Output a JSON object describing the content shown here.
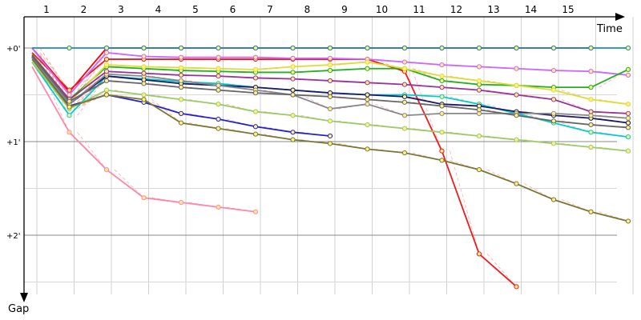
{
  "chart_data": {
    "type": "line",
    "x_axis_title": "Time",
    "y_axis_title": "Gap",
    "x_tick_labels": [
      "1",
      "2",
      "3",
      "4",
      "5",
      "6",
      "7",
      "8",
      "9",
      "10",
      "11",
      "12",
      "13",
      "14",
      "15"
    ],
    "y_tick_labels": [
      "+0'",
      "+1'",
      "+2'"
    ],
    "xlim": [
      1,
      17
    ],
    "ylim": [
      0,
      2.7
    ],
    "grid": true,
    "legend": "none",
    "series": [
      {
        "color": "#ff0000",
        "values": [
          0.0,
          0.47,
          0.0,
          0.0,
          0.0,
          0.0,
          0.0,
          0.0,
          0.0,
          0.0,
          0.0,
          0.0,
          0.0,
          0.0,
          0.0,
          0.0
        ]
      },
      {
        "color": "#ee1c1c",
        "values": [
          0.05,
          0.45,
          0.12,
          0.12,
          0.12,
          0.12,
          0.12,
          0.12,
          0.12,
          0.12,
          0.25,
          1.1,
          2.2,
          2.55
        ]
      },
      {
        "color": "#cc66ff",
        "values": [
          0.0,
          0.5,
          0.05,
          0.09,
          0.1,
          0.1,
          0.1,
          0.11,
          0.11,
          0.12,
          0.15,
          0.18,
          0.2,
          0.22,
          0.24,
          0.25,
          0.29
        ]
      },
      {
        "color": "#22b022",
        "values": [
          0.07,
          0.55,
          0.2,
          0.22,
          0.24,
          0.25,
          0.26,
          0.26,
          0.24,
          0.22,
          0.22,
          0.35,
          0.39,
          0.4,
          0.42,
          0.42,
          0.23
        ]
      },
      {
        "color": "#dddd33",
        "values": [
          0.1,
          0.58,
          0.18,
          0.2,
          0.21,
          0.22,
          0.23,
          0.2,
          0.18,
          0.15,
          0.22,
          0.3,
          0.35,
          0.4,
          0.45,
          0.55,
          0.6
        ]
      },
      {
        "color": "#1e8ab4",
        "values": [
          0.0,
          0.0,
          0.0,
          0.0,
          0.0,
          0.0,
          0.0,
          0.0,
          0.0,
          0.0,
          0.0,
          0.0,
          0.0,
          0.0,
          0.0,
          0.0,
          0.0
        ]
      },
      {
        "color": "#00cccc",
        "values": [
          0.15,
          0.72,
          0.3,
          0.33,
          0.36,
          0.38,
          0.42,
          0.45,
          0.48,
          0.5,
          0.5,
          0.52,
          0.6,
          0.7,
          0.8,
          0.9,
          0.95
        ]
      },
      {
        "color": "#ff88aa",
        "values": [
          0.2,
          0.9,
          1.3,
          1.6,
          1.65,
          1.7,
          1.75
        ]
      },
      {
        "color": "#2222cc",
        "values": [
          0.1,
          0.62,
          0.5,
          0.58,
          0.7,
          0.76,
          0.84,
          0.9,
          0.94
        ]
      },
      {
        "color": "#1a1a66",
        "values": [
          0.1,
          0.6,
          0.3,
          0.34,
          0.38,
          0.4,
          0.42,
          0.45,
          0.48,
          0.5,
          0.52,
          0.6,
          0.62,
          0.68,
          0.72,
          0.75,
          0.8
        ]
      },
      {
        "color": "#888888",
        "values": [
          0.1,
          0.6,
          0.28,
          0.3,
          0.35,
          0.4,
          0.45,
          0.5,
          0.65,
          0.6,
          0.72,
          0.7,
          0.7,
          0.7,
          0.7,
          0.72,
          0.75
        ]
      },
      {
        "color": "#99cc66",
        "values": [
          0.15,
          0.65,
          0.45,
          0.5,
          0.55,
          0.6,
          0.68,
          0.72,
          0.78,
          0.82,
          0.86,
          0.9,
          0.94,
          0.98,
          1.02,
          1.06,
          1.1
        ]
      },
      {
        "color": "#777733",
        "values": [
          0.12,
          0.63,
          0.5,
          0.55,
          0.8,
          0.86,
          0.92,
          0.98,
          1.02,
          1.08,
          1.12,
          1.2,
          1.3,
          1.45,
          1.62,
          1.75,
          1.85
        ]
      },
      {
        "color": "#993399",
        "values": [
          0.08,
          0.55,
          0.25,
          0.27,
          0.29,
          0.3,
          0.32,
          0.33,
          0.35,
          0.37,
          0.39,
          0.42,
          0.45,
          0.5,
          0.55,
          0.68,
          0.7
        ]
      },
      {
        "color": "#666666",
        "values": [
          0.09,
          0.57,
          0.35,
          0.38,
          0.42,
          0.45,
          0.48,
          0.5,
          0.52,
          0.55,
          0.58,
          0.62,
          0.66,
          0.72,
          0.78,
          0.82,
          0.85
        ]
      }
    ]
  }
}
